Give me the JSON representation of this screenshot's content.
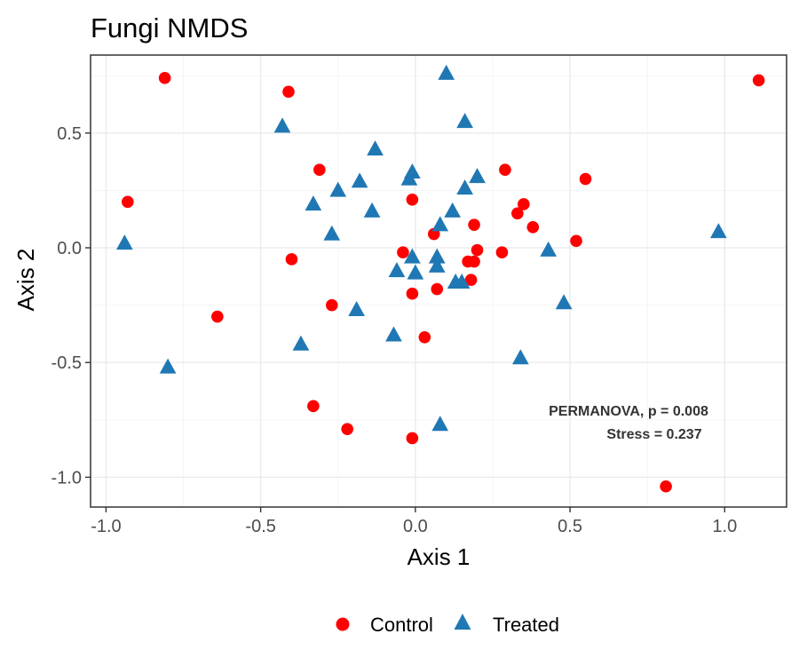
{
  "chart_data": {
    "type": "scatter",
    "title": "Fungi NMDS",
    "xlabel": "Axis 1",
    "ylabel": "Axis 2",
    "xlim": [
      -1.05,
      1.2
    ],
    "ylim": [
      -1.13,
      0.84
    ],
    "x_ticks": [
      -1.0,
      -0.5,
      0.0,
      0.5,
      1.0
    ],
    "x_tick_labels": [
      "-1.0",
      "-0.5",
      "0.0",
      "0.5",
      "1.0"
    ],
    "y_ticks": [
      -1.0,
      -0.5,
      0.0,
      0.5
    ],
    "y_tick_labels": [
      "-1.0",
      "-0.5",
      "0.0",
      "0.5"
    ],
    "grid": true,
    "legend_position": "bottom",
    "annotations": [
      "PERMANOVA, p = 0.008",
      "Stress = 0.237"
    ],
    "series": [
      {
        "name": "Control",
        "color": "#ff0000",
        "marker": "circle",
        "points": [
          [
            -0.81,
            0.74
          ],
          [
            -0.41,
            0.68
          ],
          [
            1.11,
            0.73
          ],
          [
            -0.93,
            0.2
          ],
          [
            -0.31,
            0.34
          ],
          [
            0.29,
            0.34
          ],
          [
            0.55,
            0.3
          ],
          [
            -0.01,
            0.21
          ],
          [
            0.35,
            0.19
          ],
          [
            0.33,
            0.15
          ],
          [
            0.38,
            0.09
          ],
          [
            0.19,
            0.1
          ],
          [
            0.06,
            0.06
          ],
          [
            0.52,
            0.03
          ],
          [
            -0.4,
            -0.05
          ],
          [
            -0.04,
            -0.02
          ],
          [
            0.2,
            -0.01
          ],
          [
            0.28,
            -0.02
          ],
          [
            0.17,
            -0.06
          ],
          [
            0.19,
            -0.06
          ],
          [
            0.18,
            -0.14
          ],
          [
            0.07,
            -0.18
          ],
          [
            -0.01,
            -0.2
          ],
          [
            -0.27,
            -0.25
          ],
          [
            -0.64,
            -0.3
          ],
          [
            0.03,
            -0.39
          ],
          [
            -0.33,
            -0.69
          ],
          [
            -0.22,
            -0.79
          ],
          [
            -0.01,
            -0.83
          ],
          [
            0.81,
            -1.04
          ]
        ]
      },
      {
        "name": "Treated",
        "color": "#1f78b4",
        "marker": "triangle",
        "points": [
          [
            0.1,
            0.76
          ],
          [
            0.16,
            0.55
          ],
          [
            -0.43,
            0.53
          ],
          [
            -0.13,
            0.43
          ],
          [
            -0.01,
            0.33
          ],
          [
            -0.02,
            0.3
          ],
          [
            0.2,
            0.31
          ],
          [
            -0.18,
            0.29
          ],
          [
            -0.25,
            0.25
          ],
          [
            0.16,
            0.26
          ],
          [
            -0.33,
            0.19
          ],
          [
            -0.14,
            0.16
          ],
          [
            0.12,
            0.16
          ],
          [
            0.08,
            0.1
          ],
          [
            -0.27,
            0.06
          ],
          [
            -0.94,
            0.02
          ],
          [
            0.98,
            0.07
          ],
          [
            0.43,
            -0.01
          ],
          [
            -0.01,
            -0.04
          ],
          [
            0.07,
            -0.04
          ],
          [
            0.07,
            -0.08
          ],
          [
            -0.06,
            -0.1
          ],
          [
            0.0,
            -0.11
          ],
          [
            0.13,
            -0.15
          ],
          [
            0.15,
            -0.15
          ],
          [
            -0.19,
            -0.27
          ],
          [
            0.48,
            -0.24
          ],
          [
            -0.07,
            -0.38
          ],
          [
            -0.37,
            -0.42
          ],
          [
            0.34,
            -0.48
          ],
          [
            -0.8,
            -0.52
          ],
          [
            0.08,
            -0.77
          ]
        ]
      }
    ]
  }
}
